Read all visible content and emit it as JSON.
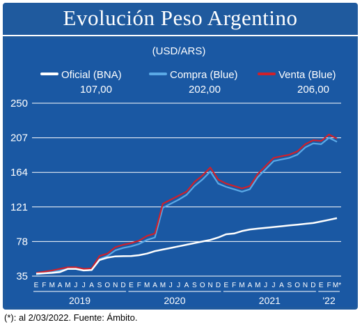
{
  "header": {
    "title": "Evolución Peso Argentino"
  },
  "footer": {
    "note": "(*): al 2/03/2022.  Fuente: Ámbito."
  },
  "colors": {
    "background": "#1a58a3",
    "oficial": "#ffffff",
    "compra": "#5aa9e6",
    "venta": "#d0202a"
  },
  "chart_data": {
    "type": "line",
    "subtitle": "(USD/ARS)",
    "ylim": [
      35,
      250
    ],
    "yticks": [
      35,
      78,
      121,
      164,
      207,
      250
    ],
    "grid": true,
    "x_months": [
      "E",
      "F",
      "M",
      "A",
      "M",
      "J",
      "J",
      "A",
      "S",
      "O",
      "N",
      "D",
      "E",
      "F",
      "M",
      "A",
      "M",
      "J",
      "J",
      "A",
      "S",
      "O",
      "N",
      "D",
      "E",
      "F",
      "M",
      "A",
      "M",
      "J",
      "J",
      "A",
      "S",
      "O",
      "N",
      "D",
      "E",
      "F",
      "M*"
    ],
    "x_years": [
      "2019",
      "2020",
      "2021",
      "'22"
    ],
    "legend": [
      {
        "name": "Oficial (BNA)",
        "value": "107,00"
      },
      {
        "name": "Compra (Blue)",
        "value": "202,00"
      },
      {
        "name": "Venta (Blue)",
        "value": "206,00"
      }
    ],
    "series": [
      {
        "name": "Oficial (BNA)",
        "values": [
          38,
          38.5,
          39,
          40,
          44,
          44,
          42,
          42.5,
          55,
          58,
          59.5,
          59.8,
          60,
          61,
          63,
          66,
          68,
          70,
          72,
          74,
          76,
          78,
          80,
          83,
          87,
          88,
          91,
          93,
          94,
          95,
          96,
          97,
          98,
          99,
          100,
          101,
          103,
          105,
          107
        ]
      },
      {
        "name": "Compra (Blue)",
        "values": [
          37,
          38.5,
          40,
          42,
          44,
          44,
          42,
          42.5,
          56,
          60,
          67,
          70,
          72,
          75,
          80,
          83,
          120,
          125,
          130,
          136,
          147,
          155,
          165,
          150,
          146,
          143,
          140,
          143,
          158,
          168,
          178,
          180,
          182,
          186,
          195,
          200,
          199,
          207,
          202
        ]
      },
      {
        "name": "Venta (Blue)",
        "values": [
          39,
          40.5,
          42,
          44,
          46,
          46,
          44,
          44.5,
          60,
          63,
          71,
          74,
          76,
          79,
          85,
          88,
          125,
          130,
          135,
          140,
          152,
          160,
          170,
          155,
          150,
          147,
          144,
          147,
          162,
          172,
          182,
          184,
          186,
          190,
          199,
          204,
          203,
          211,
          206
        ]
      }
    ]
  }
}
